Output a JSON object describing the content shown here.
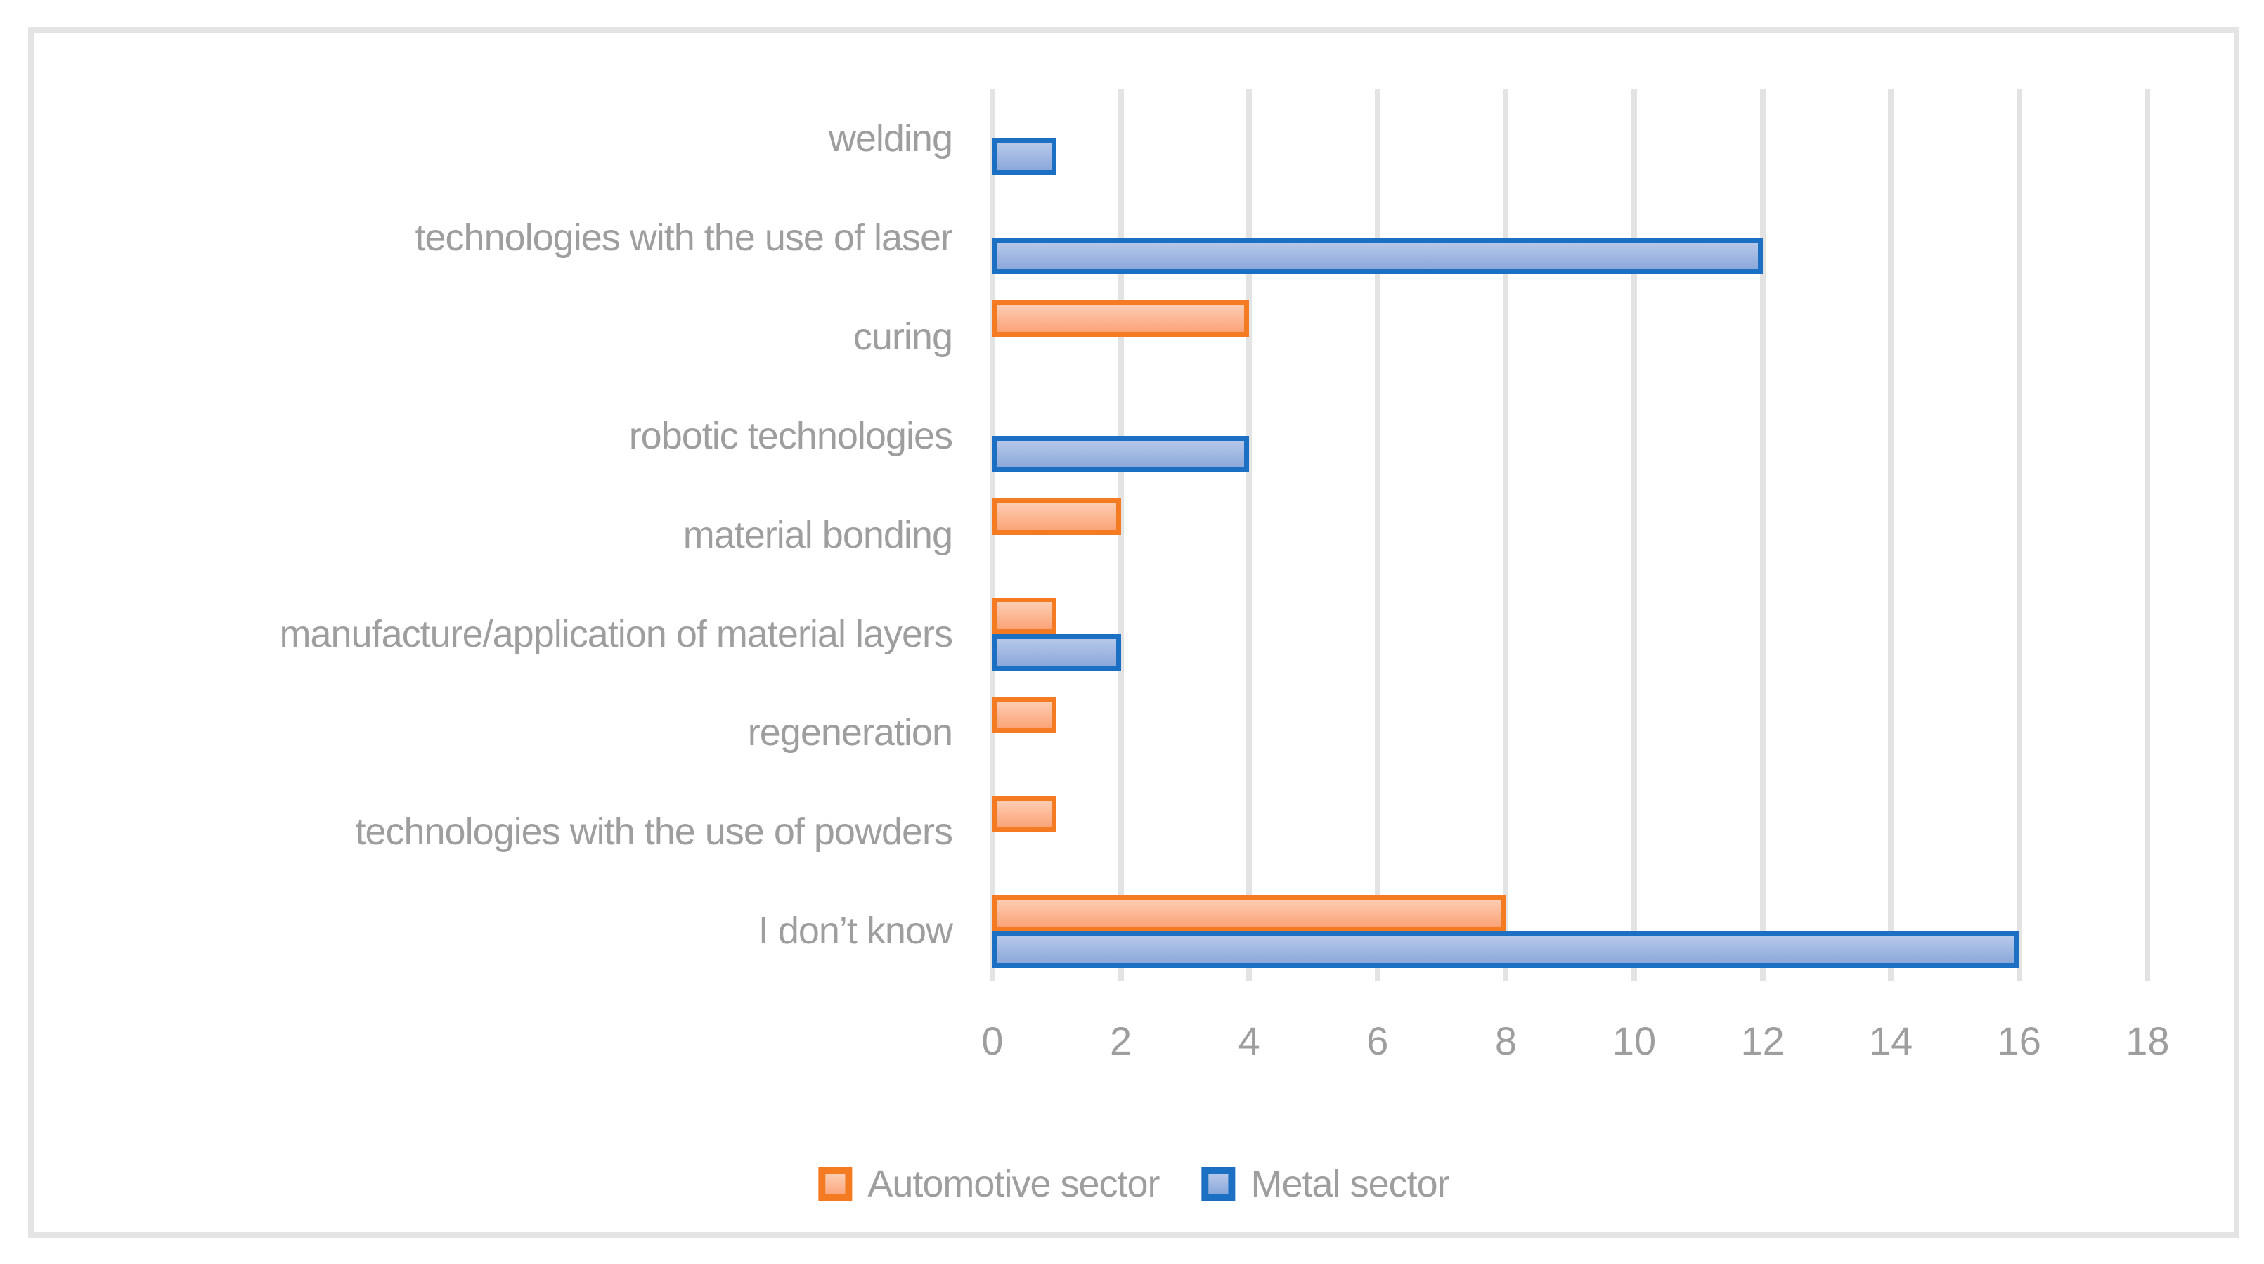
{
  "chart_data": {
    "type": "bar",
    "orientation": "horizontal",
    "title": "",
    "xlabel": "",
    "ylabel": "",
    "categories": [
      "welding",
      "technologies with the use of laser",
      "curing",
      "robotic technologies",
      "material bonding",
      "manufacture/application of material layers",
      "regeneration",
      "technologies with the use of powders",
      "I don’t know"
    ],
    "series": [
      {
        "name": "Automotive sector",
        "key": "automotive",
        "values": [
          0,
          0,
          4,
          0,
          2,
          1,
          1,
          1,
          8
        ]
      },
      {
        "name": "Metal sector",
        "key": "metal",
        "values": [
          1,
          12,
          0,
          4,
          0,
          2,
          0,
          0,
          16
        ]
      }
    ],
    "xlim": [
      0,
      18
    ],
    "xticks": [
      0,
      2,
      4,
      6,
      8,
      10,
      12,
      14,
      16,
      18
    ],
    "grid": true,
    "legend_position": "bottom"
  },
  "legend": {
    "items": [
      {
        "label": "Automotive sector",
        "key": "automotive"
      },
      {
        "label": "Metal sector",
        "key": "metal"
      }
    ]
  },
  "colors": {
    "automotive_border": "#F47B21",
    "automotive_fill_top": "#FCCDB2",
    "automotive_fill_bottom": "#FBA377",
    "metal_border": "#1C70C4",
    "metal_fill_top": "#B6C8E9",
    "metal_fill_bottom": "#8BA8DB",
    "gridline": "#E3E3E3",
    "frame_border": "#E4E4E4",
    "text": "#9E9E9E",
    "background": "#FFFFFF"
  }
}
